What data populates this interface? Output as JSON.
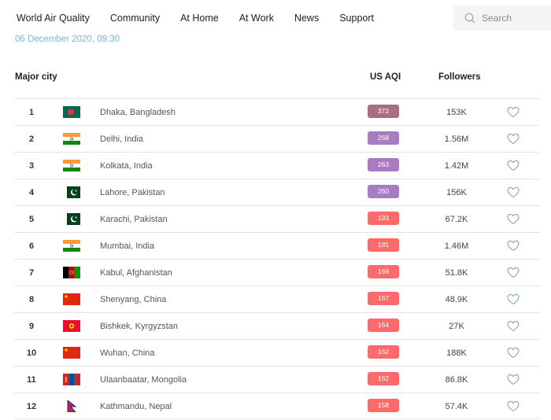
{
  "nav": [
    "World Air Quality",
    "Community",
    "At Home",
    "At Work",
    "News",
    "Support"
  ],
  "search": {
    "placeholder": "Search"
  },
  "date": "06 December 2020, 09:30",
  "table": {
    "headers": {
      "city": "Major city",
      "aqi": "US AQI",
      "followers": "Followers"
    },
    "rows": [
      {
        "rank": "1",
        "flag": "bangladesh",
        "city": "Dhaka, Bangladesh",
        "aqi": "372",
        "color": "#a8707e",
        "followers": "153K"
      },
      {
        "rank": "2",
        "flag": "india",
        "city": "Delhi, India",
        "aqi": "268",
        "color": "#a97bbf",
        "followers": "1.56M"
      },
      {
        "rank": "3",
        "flag": "india",
        "city": "Kolkata, India",
        "aqi": "263",
        "color": "#a97bbf",
        "followers": "1.42M"
      },
      {
        "rank": "4",
        "flag": "pakistan",
        "city": "Lahore, Pakistan",
        "aqi": "260",
        "color": "#a97bbf",
        "followers": "156K"
      },
      {
        "rank": "5",
        "flag": "pakistan",
        "city": "Karachi, Pakistan",
        "aqi": "193",
        "color": "#fe6a69",
        "followers": "67.2K"
      },
      {
        "rank": "6",
        "flag": "india",
        "city": "Mumbai, India",
        "aqi": "181",
        "color": "#fe6a69",
        "followers": "1.46M"
      },
      {
        "rank": "7",
        "flag": "afghanistan",
        "city": "Kabul, Afghanistan",
        "aqi": "169",
        "color": "#fe6a69",
        "followers": "51.8K"
      },
      {
        "rank": "8",
        "flag": "china",
        "city": "Shenyang, China",
        "aqi": "167",
        "color": "#fe6a69",
        "followers": "48.9K"
      },
      {
        "rank": "9",
        "flag": "kyrgyzstan",
        "city": "Bishkek, Kyrgyzstan",
        "aqi": "164",
        "color": "#fe6a69",
        "followers": "27K"
      },
      {
        "rank": "10",
        "flag": "china",
        "city": "Wuhan, China",
        "aqi": "162",
        "color": "#fe6a69",
        "followers": "188K"
      },
      {
        "rank": "11",
        "flag": "mongolia",
        "city": "Ulaanbaatar, Mongolia",
        "aqi": "162",
        "color": "#fe6a69",
        "followers": "86.8K"
      },
      {
        "rank": "12",
        "flag": "nepal",
        "city": "Kathmandu, Nepal",
        "aqi": "158",
        "color": "#fe6a69",
        "followers": "57.4K"
      }
    ]
  }
}
